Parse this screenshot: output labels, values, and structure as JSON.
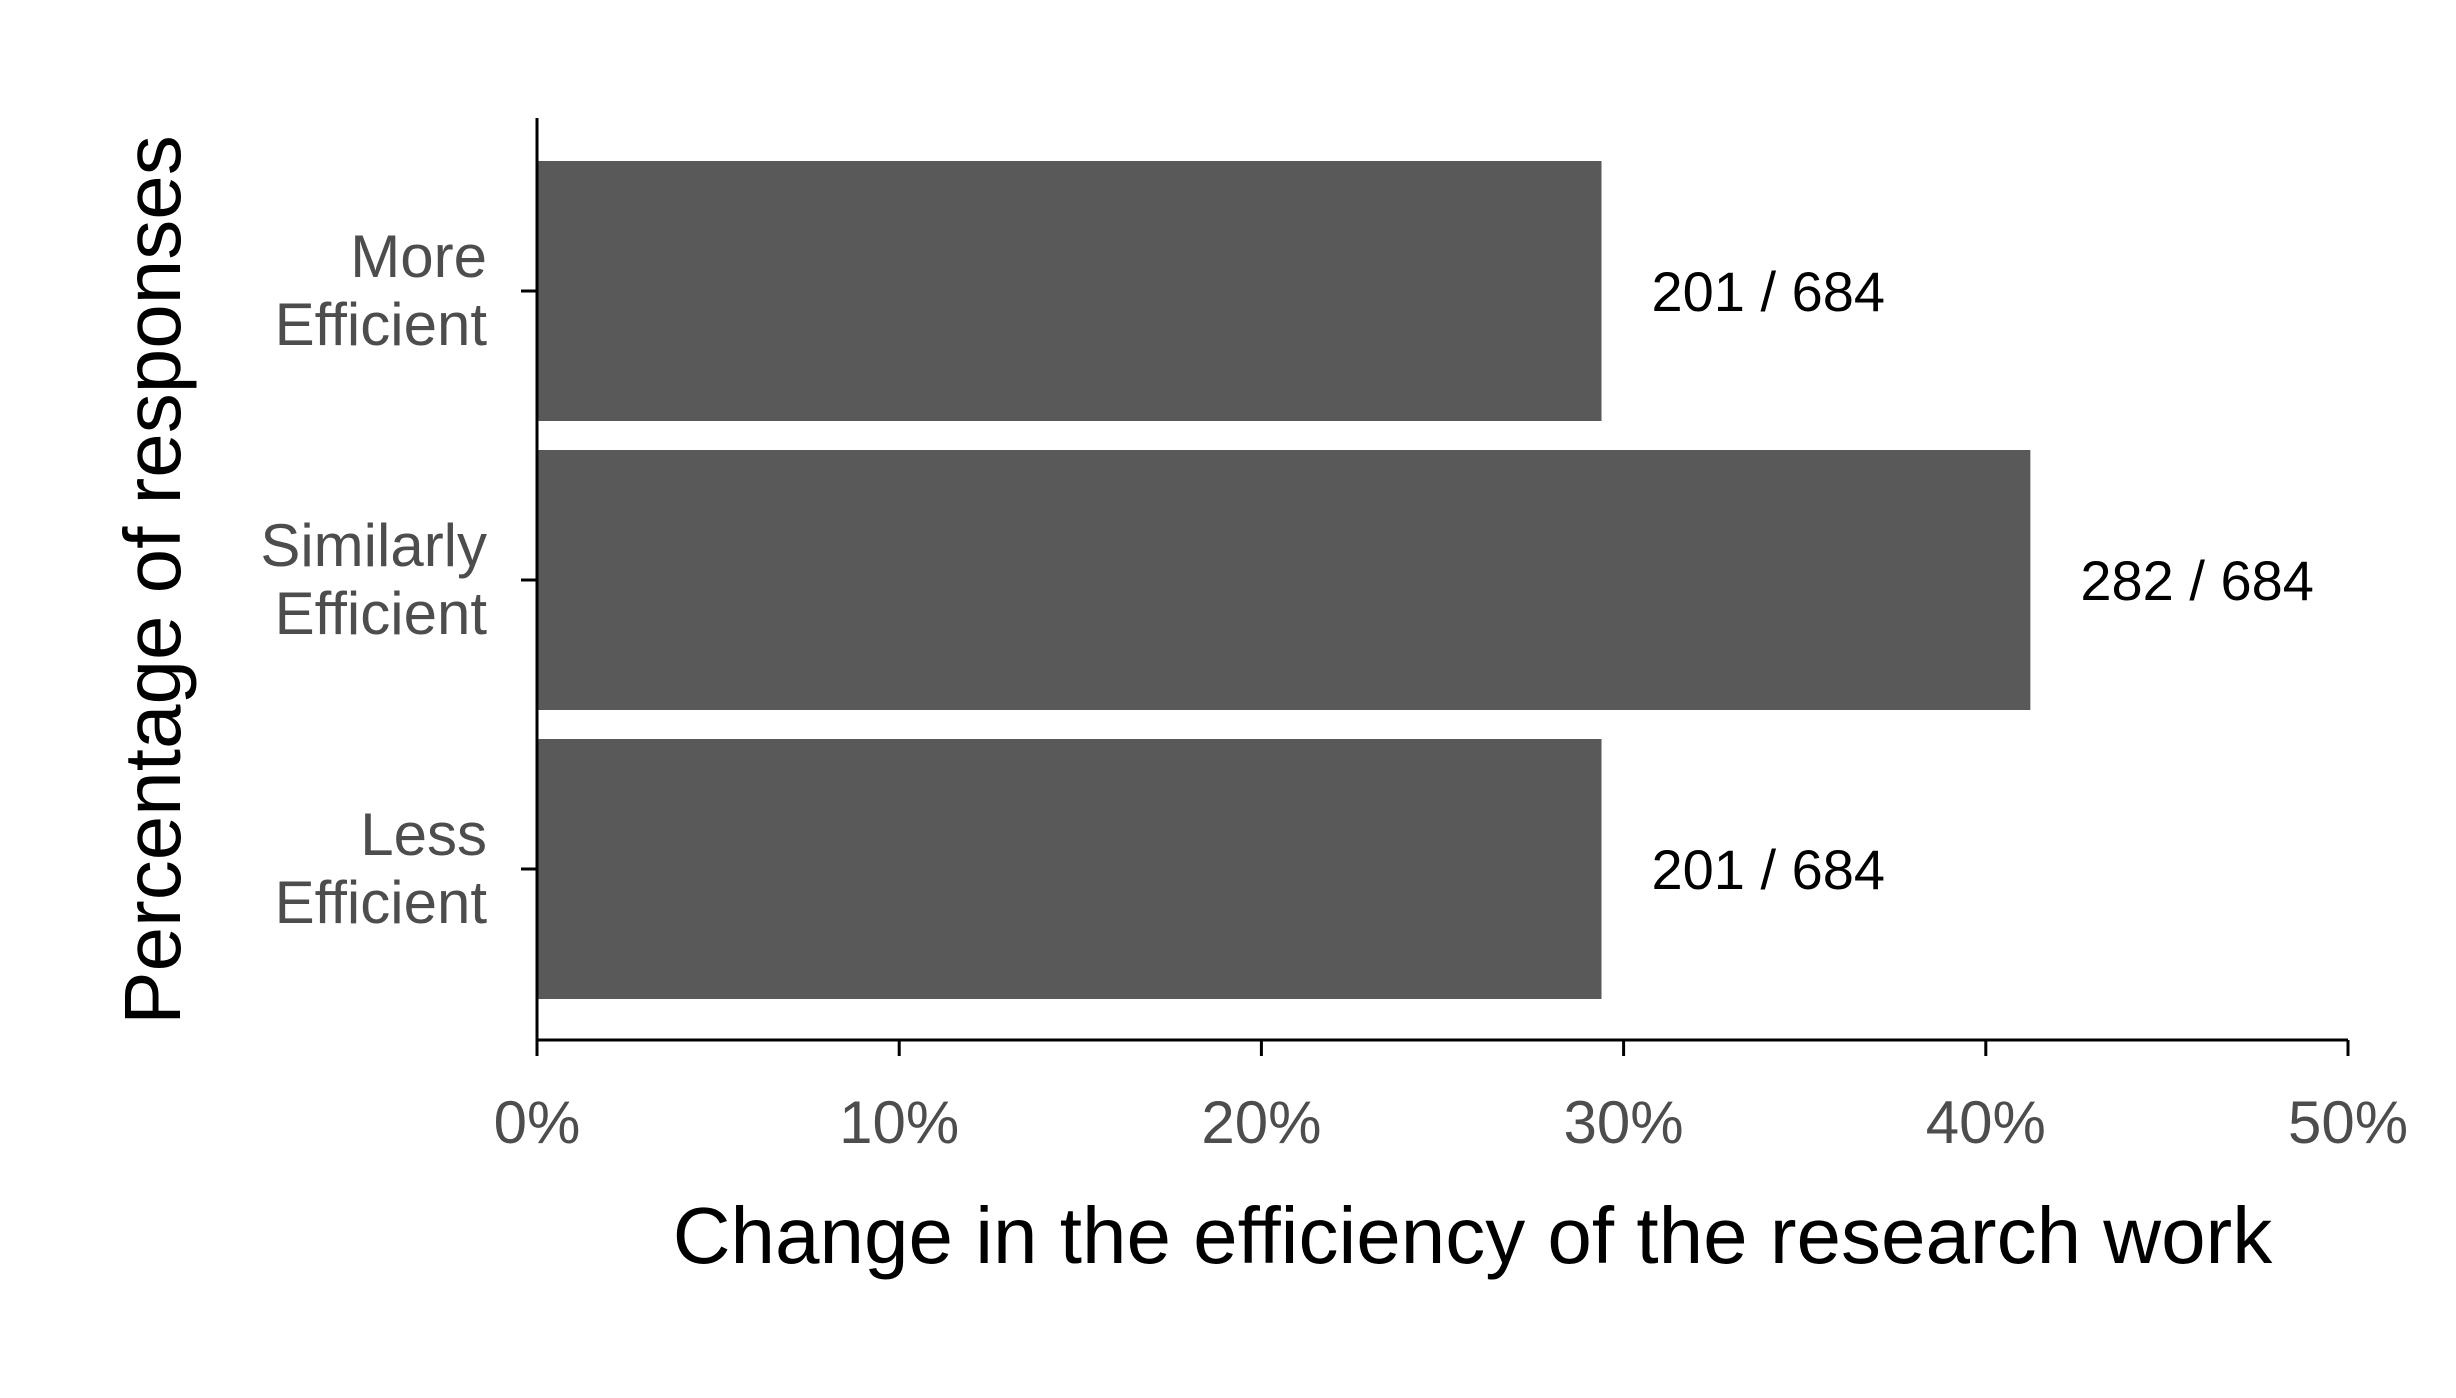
{
  "chart_data": {
    "type": "bar",
    "orientation": "horizontal",
    "categories": [
      [
        "More",
        "Efficient"
      ],
      [
        "Similarly",
        "Efficient"
      ],
      [
        "Less",
        "Efficient"
      ]
    ],
    "values": [
      29.39,
      41.23,
      29.39
    ],
    "value_unit": "percent",
    "bar_labels": [
      "201 / 684",
      "282 / 684",
      "201 / 684"
    ],
    "xlabel": "Change in the efficiency of the research work",
    "ylabel": "Percentage of responses",
    "xlim": [
      0,
      50
    ],
    "xticks": [
      0,
      10,
      20,
      30,
      40,
      50
    ],
    "xtick_labels": [
      "0%",
      "10%",
      "20%",
      "30%",
      "40%",
      "50%"
    ],
    "grid": false,
    "legend": "none",
    "colors": {
      "bar": "#595959",
      "axis": "#000000",
      "tick_text": "#4d4d4d"
    }
  }
}
